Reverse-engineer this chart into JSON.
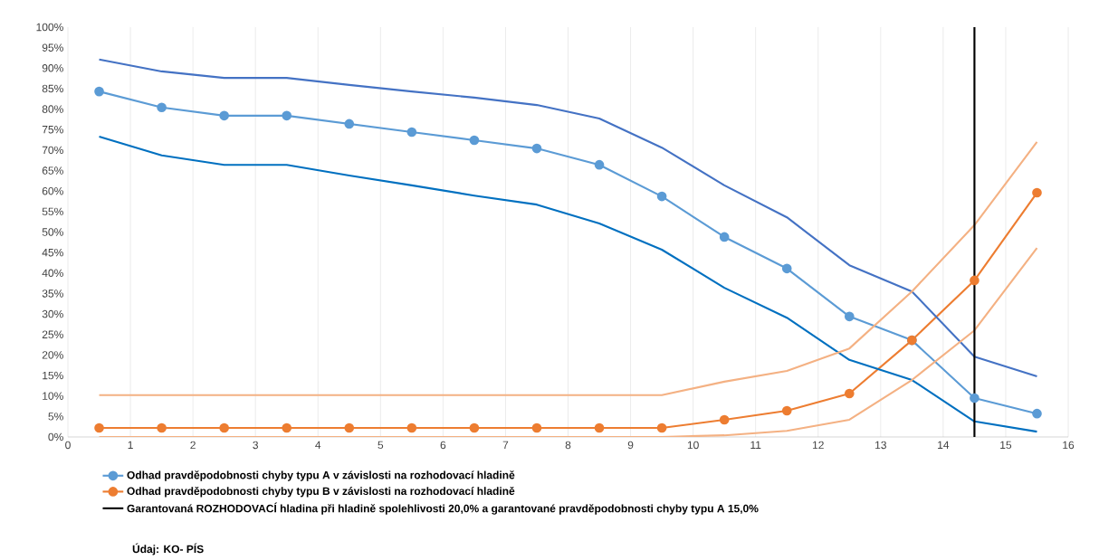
{
  "chart_data": {
    "type": "line",
    "x": [
      0.5,
      1.5,
      2.5,
      3.5,
      4.5,
      5.5,
      6.5,
      7.5,
      8.5,
      9.5,
      10.5,
      11.5,
      12.5,
      13.5,
      14.5,
      15.5
    ],
    "series": [
      {
        "name": "Odhad pravděpodobnosti chyby typu A v závislosti na rozhodovací hladině",
        "color": "#5b9bd5",
        "marker": "circle",
        "values": [
          84.3,
          80.4,
          78.4,
          78.4,
          76.4,
          74.4,
          72.4,
          70.4,
          66.4,
          58.7,
          48.8,
          41.1,
          29.4,
          23.6,
          9.5,
          5.7
        ]
      },
      {
        "name": "Odhad pravděpodobnosti chyby typu B v závislosti na rozhodovací hladině",
        "color": "#ed7d31",
        "marker": "circle",
        "values": [
          2.2,
          2.2,
          2.2,
          2.2,
          2.2,
          2.2,
          2.2,
          2.2,
          2.2,
          2.2,
          4.2,
          6.4,
          10.6,
          23.6,
          38.2,
          59.6
        ]
      },
      {
        "color": "#4472c4",
        "marker": "none",
        "values": [
          92.1,
          89.2,
          87.6,
          87.6,
          85.9,
          84.3,
          82.8,
          81.0,
          77.7,
          70.6,
          61.4,
          53.6,
          41.9,
          35.5,
          19.6,
          14.8
        ]
      },
      {
        "color": "#0070c0",
        "marker": "none",
        "values": [
          73.3,
          68.7,
          66.4,
          66.4,
          63.8,
          61.4,
          58.9,
          56.7,
          52.1,
          45.7,
          36.4,
          29.1,
          18.8,
          13.9,
          3.8,
          1.3
        ]
      },
      {
        "color": "#f4b183",
        "marker": "none",
        "values": [
          10.2,
          10.2,
          10.2,
          10.2,
          10.2,
          10.2,
          10.2,
          10.2,
          10.2,
          10.2,
          13.5,
          16.1,
          21.6,
          35.5,
          51.7,
          72.0
        ]
      },
      {
        "color": "#f4b183",
        "marker": "none",
        "values": [
          0,
          0,
          0,
          0,
          0,
          0,
          0,
          0,
          0,
          0,
          0.4,
          1.5,
          4.2,
          13.9,
          26.0,
          46.1
        ]
      }
    ],
    "ref_lines": [
      {
        "axis": "x",
        "value": 14.5,
        "label": "Garantovaná ROZHODOVACÍ hladina při hladině spolehlivosti 20,0% a garantované pravděpodobnosti chyby typu A 15,0%",
        "color": "#000000"
      }
    ],
    "annotations": [
      "Údaj: KO- PÍS"
    ],
    "xlim": [
      0,
      16
    ],
    "xticks": [
      0,
      1,
      2,
      3,
      4,
      5,
      6,
      7,
      8,
      9,
      10,
      11,
      12,
      13,
      14,
      15,
      16
    ],
    "ylim": [
      0,
      100
    ],
    "yticks": [
      {
        "value": 0,
        "label": "0%"
      },
      {
        "value": 5,
        "label": "5%"
      },
      {
        "value": 10,
        "label": "10%"
      },
      {
        "value": 15,
        "label": "15%"
      },
      {
        "value": 20,
        "label": "20%"
      },
      {
        "value": 25,
        "label": "25%"
      },
      {
        "value": 30,
        "label": "30%"
      },
      {
        "value": 35,
        "label": "35%"
      },
      {
        "value": 40,
        "label": "40%"
      },
      {
        "value": 45,
        "label": "45%"
      },
      {
        "value": 50,
        "label": "50%"
      },
      {
        "value": 55,
        "label": "55%"
      },
      {
        "value": 60,
        "label": "60%"
      },
      {
        "value": 65,
        "label": "65%"
      },
      {
        "value": 70,
        "label": "70%"
      },
      {
        "value": 75,
        "label": "75%"
      },
      {
        "value": 80,
        "label": "80%"
      },
      {
        "value": 85,
        "label": "85%"
      },
      {
        "value": 90,
        "label": "90%"
      },
      {
        "value": 95,
        "label": "95%"
      },
      {
        "value": 100,
        "label": "100%"
      }
    ],
    "grid": "x",
    "legend": "bottom"
  }
}
